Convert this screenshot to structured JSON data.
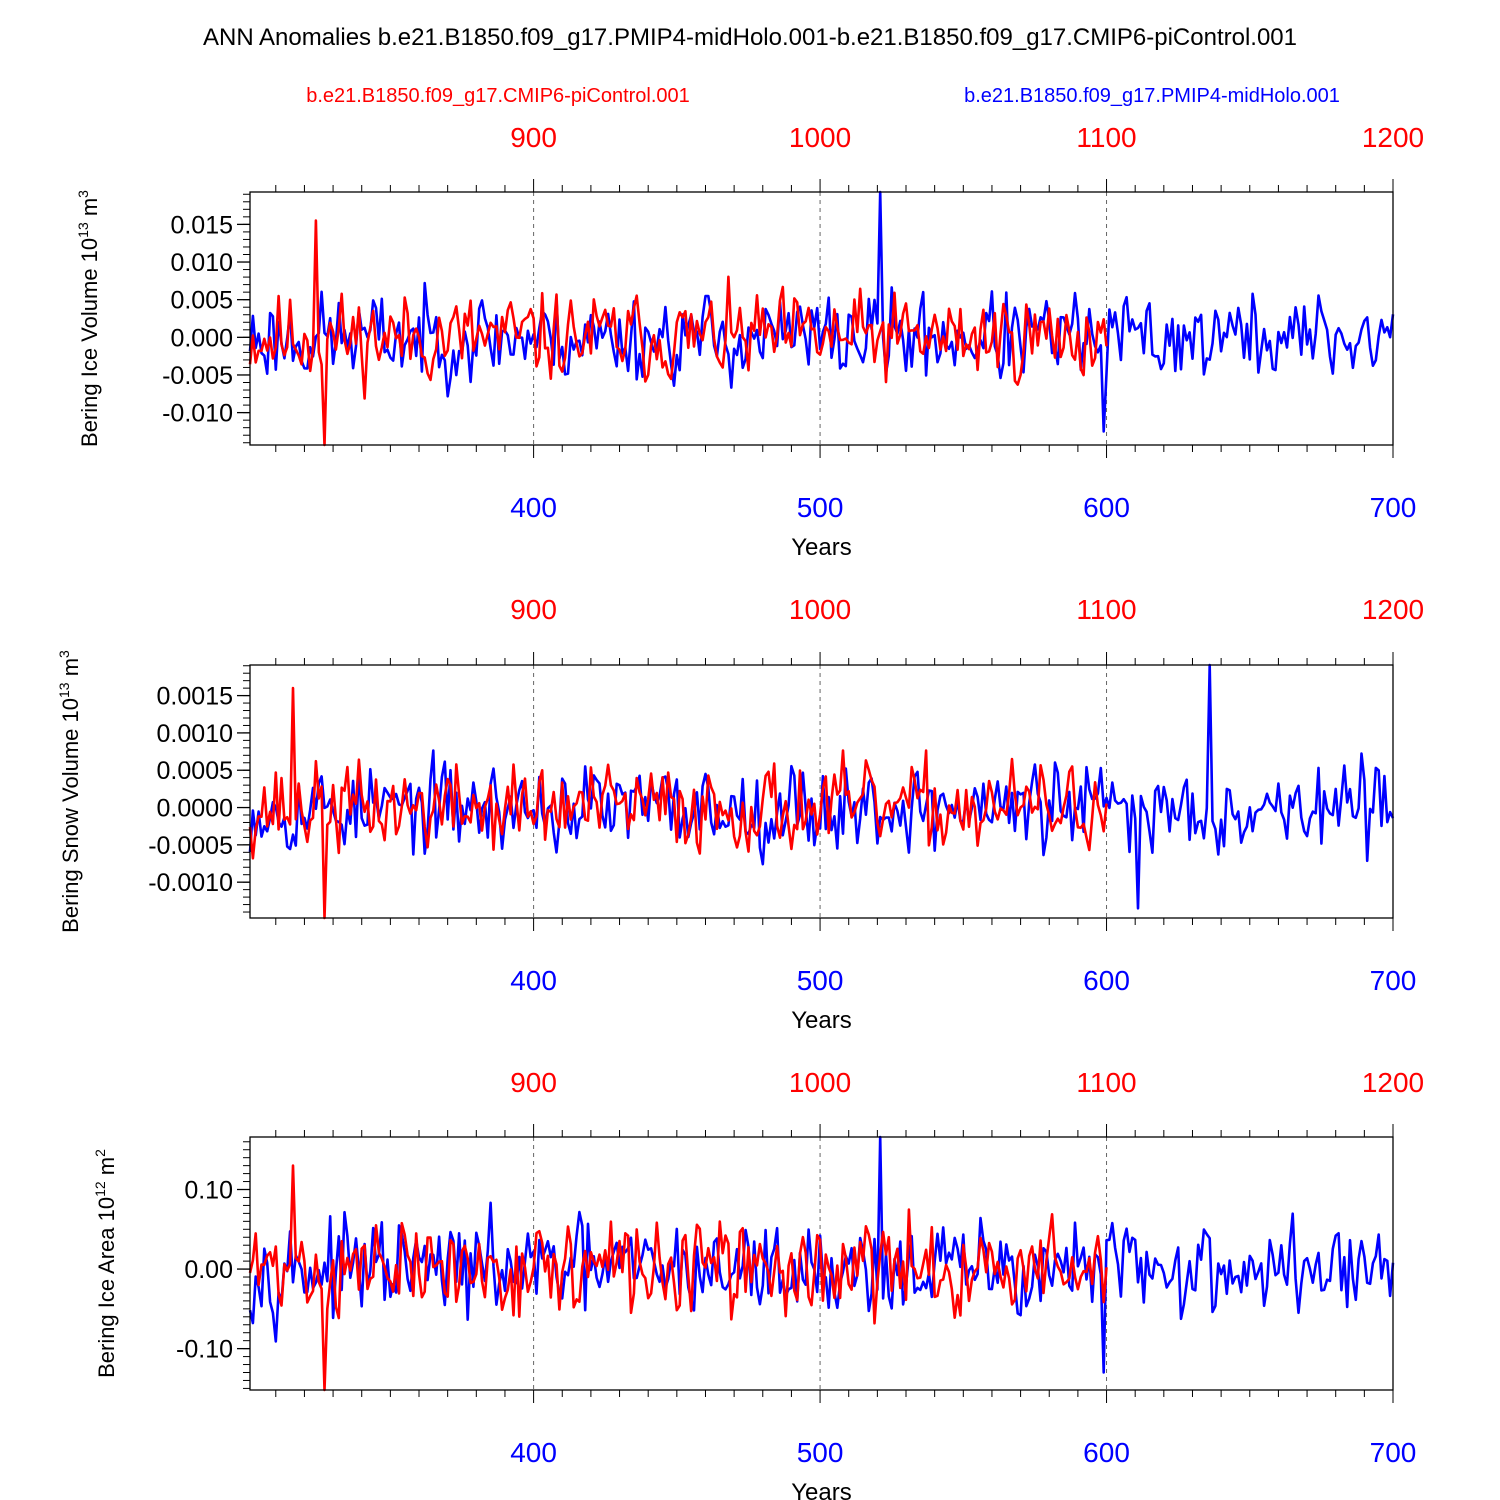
{
  "title": "ANN Anomalies b.e21.B1850.f09_g17.PMIP4-midHolo.001-b.e21.B1850.f09_g17.CMIP6-piControl.001",
  "legend": {
    "red_label": "b.e21.B1850.f09_g17.CMIP6-piControl.001",
    "blue_label": "b.e21.B1850.f09_g17.PMIP4-midHolo.001"
  },
  "colors": {
    "red": "#ff0000",
    "blue": "#0000ff",
    "axis": "#000000",
    "grid": "#666666"
  },
  "chart_data": [
    {
      "type": "line",
      "ylabel": "Bering Ice Volume 10",
      "ylabel_exp": "13",
      "ylabel_unit": " m",
      "ylabel_unit_exp": "3",
      "xlabel": "Years",
      "ylim": [
        -0.0143,
        0.0193
      ],
      "yticks": [
        -0.01,
        -0.005,
        0.0,
        0.005,
        0.01,
        0.015
      ],
      "ytick_labels": [
        "-0.010",
        "-0.005",
        "0.000",
        "0.005",
        "0.010",
        "0.015"
      ],
      "yminor_step": 0.001,
      "bottom_ticks": [
        400,
        500,
        600,
        700
      ],
      "top_ticks": [
        900,
        1000,
        1100,
        1200
      ],
      "series": [
        {
          "name": "b.e21.B1850.f09_g17.CMIP6-piControl.001",
          "color": "red",
          "x_start": 801,
          "x_end": 1100,
          "peak": [
            824,
            0.0155
          ],
          "trough": [
            827,
            -0.0143
          ],
          "amplitude": 0.0085,
          "seed": 11
        },
        {
          "name": "b.e21.B1850.f09_g17.PMIP4-midHolo.001",
          "color": "blue",
          "x_start": 301,
          "x_end": 700,
          "peak": [
            521,
            0.0193
          ],
          "trough": [
            599,
            -0.0125
          ],
          "amplitude": 0.0085,
          "seed": 23
        }
      ]
    },
    {
      "type": "line",
      "ylabel": "Bering Snow Volume 10",
      "ylabel_exp": "13",
      "ylabel_unit": " m",
      "ylabel_unit_exp": "3",
      "xlabel": "Years",
      "ylim": [
        -0.00148,
        0.00191
      ],
      "yticks": [
        -0.001,
        -0.0005,
        0.0,
        0.0005,
        0.001,
        0.0015
      ],
      "ytick_labels": [
        "-0.0010",
        "-0.0005",
        "0.0000",
        "0.0005",
        "0.0010",
        "0.0015"
      ],
      "yminor_step": 0.0001,
      "bottom_ticks": [
        400,
        500,
        600,
        700
      ],
      "top_ticks": [
        900,
        1000,
        1100,
        1200
      ],
      "series": [
        {
          "name": "b.e21.B1850.f09_g17.CMIP6-piControl.001",
          "color": "red",
          "x_start": 801,
          "x_end": 1100,
          "peak": [
            816,
            0.0016
          ],
          "trough": [
            827,
            -0.00148
          ],
          "amplitude": 0.00085,
          "seed": 37
        },
        {
          "name": "b.e21.B1850.f09_g17.PMIP4-midHolo.001",
          "color": "blue",
          "x_start": 301,
          "x_end": 700,
          "peak": [
            636,
            0.00191
          ],
          "trough": [
            611,
            -0.00135
          ],
          "amplitude": 0.00085,
          "seed": 53
        }
      ]
    },
    {
      "type": "line",
      "ylabel": "Bering Ice Area 10",
      "ylabel_exp": "12",
      "ylabel_unit": " m",
      "ylabel_unit_exp": "2",
      "xlabel": "Years",
      "ylim": [
        -0.152,
        0.166
      ],
      "yticks": [
        -0.1,
        0.0,
        0.1
      ],
      "ytick_labels": [
        "-0.10",
        "0.00",
        "0.10"
      ],
      "yminor_step": 0.01,
      "bottom_ticks": [
        400,
        500,
        600,
        700
      ],
      "top_ticks": [
        900,
        1000,
        1100,
        1200
      ],
      "series": [
        {
          "name": "b.e21.B1850.f09_g17.CMIP6-piControl.001",
          "color": "red",
          "x_start": 801,
          "x_end": 1100,
          "peak": [
            816,
            0.13
          ],
          "trough": [
            827,
            -0.152
          ],
          "amplitude": 0.085,
          "seed": 71
        },
        {
          "name": "b.e21.B1850.f09_g17.PMIP4-midHolo.001",
          "color": "blue",
          "x_start": 301,
          "x_end": 700,
          "peak": [
            521,
            0.166
          ],
          "trough": [
            599,
            -0.13
          ],
          "amplitude": 0.085,
          "seed": 97
        }
      ]
    }
  ]
}
